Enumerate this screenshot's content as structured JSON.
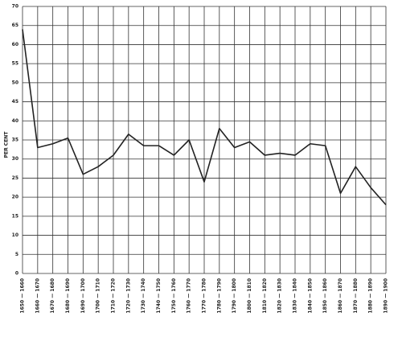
{
  "chart_data": {
    "type": "line",
    "y_label": "PER CENT",
    "categories": [
      "1650 — 1660",
      "1660 — 1670",
      "1670 — 1680",
      "1680 — 1690",
      "1690 — 1700",
      "1700 — 1710",
      "1710 — 1720",
      "1720 — 1730",
      "1730 — 1740",
      "1740 — 1750",
      "1750 — 1760",
      "1760 — 1770",
      "1770 — 1780",
      "1780 — 1790",
      "1790 — 1800",
      "1800 — 1810",
      "1810 — 1820",
      "1820 — 1830",
      "1830 — 1840",
      "1840 — 1850",
      "1850 — 1860",
      "1860 — 1870",
      "1870 — 1880",
      "1880 — 1890",
      "1890 — 1900"
    ],
    "values": [
      64,
      33,
      34,
      35.5,
      26,
      28,
      31,
      36.5,
      33.5,
      33.5,
      31,
      35,
      24,
      38,
      33,
      34.5,
      31,
      31.5,
      31,
      34,
      33.5,
      21,
      28,
      22.5,
      18
    ],
    "color": "#222222",
    "ylim": [
      0,
      70
    ],
    "yticks": [
      0,
      5,
      10,
      15,
      20,
      25,
      30,
      35,
      40,
      45,
      50,
      55,
      60,
      65,
      70
    ],
    "grid": true
  }
}
